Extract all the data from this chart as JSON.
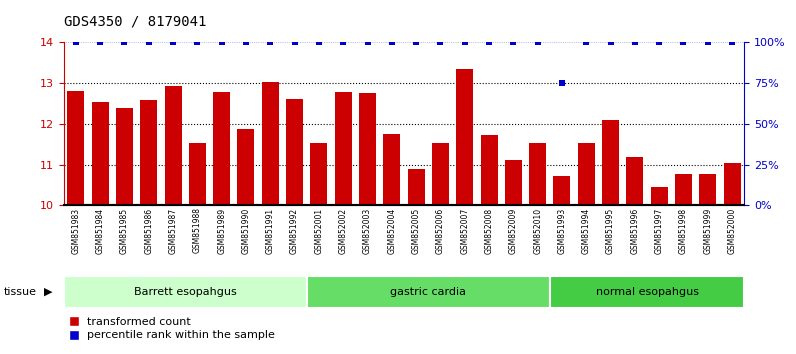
{
  "title": "GDS4350 / 8179041",
  "samples": [
    "GSM851983",
    "GSM851984",
    "GSM851985",
    "GSM851986",
    "GSM851987",
    "GSM851988",
    "GSM851989",
    "GSM851990",
    "GSM851991",
    "GSM851992",
    "GSM852001",
    "GSM852002",
    "GSM852003",
    "GSM852004",
    "GSM852005",
    "GSM852006",
    "GSM852007",
    "GSM852008",
    "GSM852009",
    "GSM852010",
    "GSM851993",
    "GSM851994",
    "GSM851995",
    "GSM851996",
    "GSM851997",
    "GSM851998",
    "GSM851999",
    "GSM852000"
  ],
  "red_values": [
    12.82,
    12.55,
    12.38,
    12.58,
    12.92,
    11.52,
    12.78,
    11.88,
    13.04,
    12.6,
    11.52,
    12.78,
    12.75,
    11.75,
    10.88,
    11.52,
    13.35,
    11.72,
    11.12,
    11.52,
    10.72,
    11.52,
    12.1,
    11.18,
    10.45,
    10.78,
    10.78,
    11.05
  ],
  "blue_values": [
    100,
    100,
    100,
    100,
    100,
    100,
    100,
    100,
    100,
    100,
    100,
    100,
    100,
    100,
    100,
    100,
    100,
    100,
    100,
    100,
    75,
    100,
    100,
    100,
    100,
    100,
    100,
    100
  ],
  "groups": [
    {
      "label": "Barrett esopahgus",
      "start": 0,
      "end": 10,
      "color": "#ccffcc"
    },
    {
      "label": "gastric cardia",
      "start": 10,
      "end": 20,
      "color": "#66dd66"
    },
    {
      "label": "normal esopahgus",
      "start": 20,
      "end": 28,
      "color": "#44cc44"
    }
  ],
  "ylim_left": [
    10,
    14
  ],
  "ylim_right": [
    0,
    100
  ],
  "yticks_left": [
    10,
    11,
    12,
    13,
    14
  ],
  "yticks_right": [
    0,
    25,
    50,
    75,
    100
  ],
  "bar_color": "#cc0000",
  "dot_color": "#0000cc",
  "plot_bg": "#ffffff",
  "xlabel_bg": "#d8d8d8",
  "title_fontsize": 10,
  "label_fontsize": 6,
  "axis_fontsize": 8
}
